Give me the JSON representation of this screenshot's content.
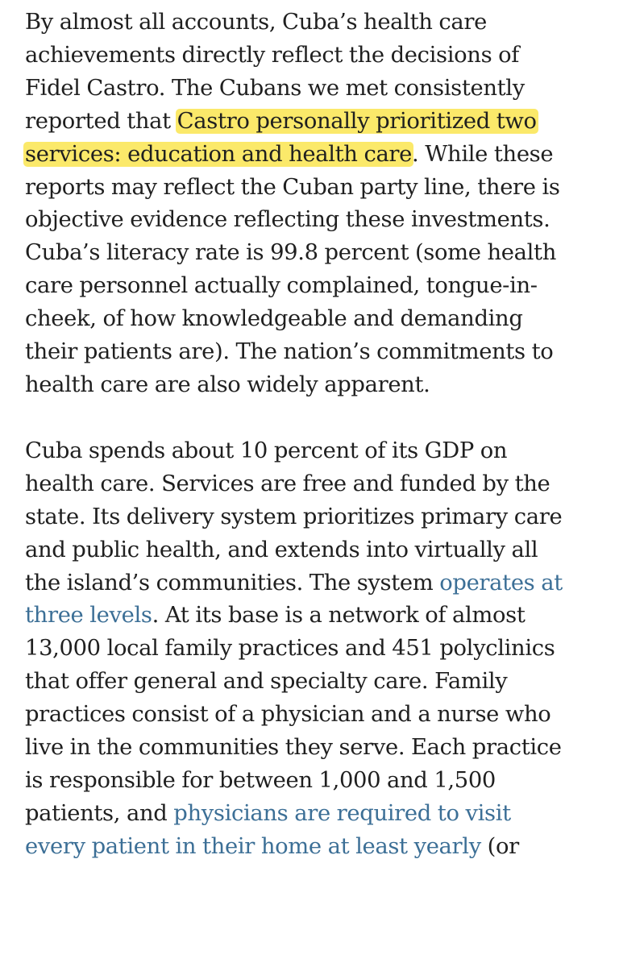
{
  "paragraph1": {
    "l1": "By almost all accounts, Cuba’s health care",
    "l2": "achievements directly reflect the decisions of",
    "l3": "Fidel Castro. The Cubans we met consistently",
    "l4_plain": "reported that ",
    "l4_highlight": "Castro personally prioritized two",
    "l5_highlight": "services: education and health care",
    "l5_plain": ". While these",
    "l6": "reports may reflect the Cuban party line, there is",
    "l7": "objective evidence reflecting these investments.",
    "l8": "Cuba’s literacy rate is 99.8 percent (some health",
    "l9": "care personnel actually complained, tongue-in-",
    "l10": "cheek, of how knowledgeable and demanding",
    "l11": "their patients are).  The nation’s commitments to",
    "l12": "health care are also widely apparent."
  },
  "paragraph2": {
    "l1": "Cuba spends about 10 percent of its GDP on",
    "l2": "health care. Services are free and funded by the",
    "l3": "state. Its delivery system prioritizes primary care",
    "l4": "and public health, and extends into virtually all",
    "l5_plain": "the island’s communities. The system ",
    "l5_link": "operates at",
    "l6_link": "three levels",
    "l6_plain": ". At its base is a network of almost",
    "l7": "13,000 local family practices and 451 polyclinics",
    "l8": "that offer general and specialty care. Family",
    "l9": "practices consist of a physician and a nurse who",
    "l10": "live in the communities they serve. Each practice",
    "l11": "is responsible for between 1,000 and 1,500",
    "l12_plain": "patients, and ",
    "l12_link": "physicians are required to visit",
    "l13_link": "every patient in their home at least yearly",
    "l13_plain": " (or"
  },
  "colors": {
    "text": "#1f1f1f",
    "highlight": "#fbe96a",
    "link": "#3c6f96"
  }
}
